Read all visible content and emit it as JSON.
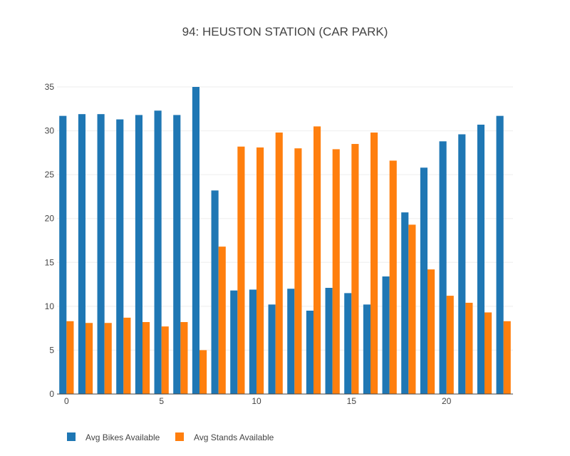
{
  "chart_data": {
    "type": "bar",
    "title": "94: HEUSTON STATION (CAR PARK)",
    "xlabel": "",
    "ylabel": "",
    "x": [
      0,
      1,
      2,
      3,
      4,
      5,
      6,
      7,
      8,
      9,
      10,
      11,
      12,
      13,
      14,
      15,
      16,
      17,
      18,
      19,
      20,
      21,
      22,
      23
    ],
    "x_ticks": [
      0,
      5,
      10,
      15,
      20
    ],
    "y_ticks": [
      0,
      5,
      10,
      15,
      20,
      25,
      30,
      35
    ],
    "ylim": [
      0,
      35
    ],
    "grid": "horizontal",
    "legend_position": "bottom-left",
    "series": [
      {
        "name": "Avg Bikes Available",
        "color": "#1f77b4",
        "values": [
          31.7,
          31.9,
          31.9,
          31.3,
          31.8,
          32.3,
          31.8,
          35.0,
          23.2,
          11.8,
          11.9,
          10.2,
          12.0,
          9.5,
          12.1,
          11.5,
          10.2,
          13.4,
          20.7,
          25.8,
          28.8,
          29.6,
          30.7,
          31.7
        ]
      },
      {
        "name": "Avg Stands Available",
        "color": "#ff7f0e",
        "values": [
          8.3,
          8.1,
          8.1,
          8.7,
          8.2,
          7.7,
          8.2,
          5.0,
          16.8,
          28.2,
          28.1,
          29.8,
          28.0,
          30.5,
          27.9,
          28.5,
          29.8,
          26.6,
          19.3,
          14.2,
          11.2,
          10.4,
          9.3,
          8.3
        ]
      }
    ]
  }
}
